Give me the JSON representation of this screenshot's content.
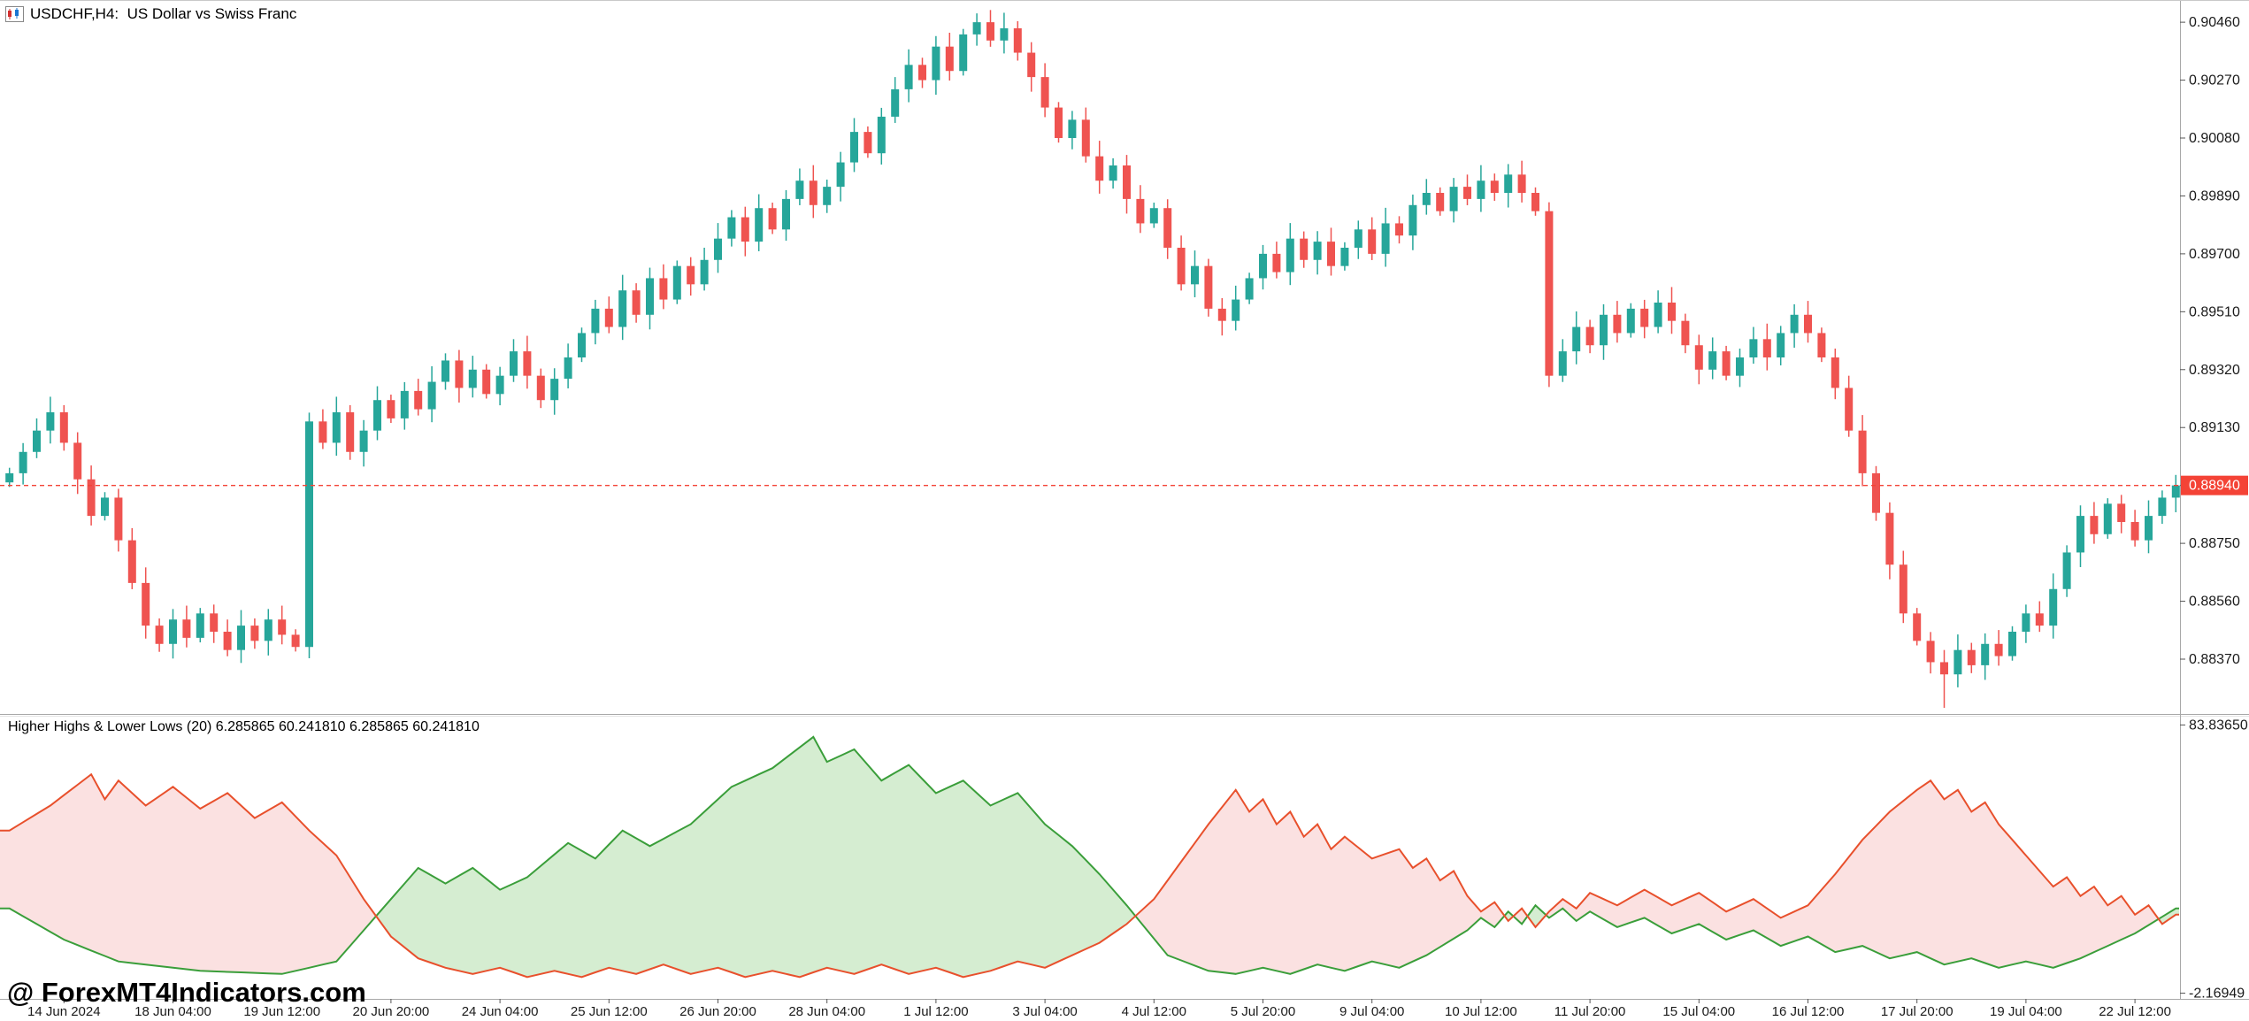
{
  "window": {
    "title": "USDCHF,H4:  US Dollar vs Swiss Franc"
  },
  "watermark": "@ ForexMT4Indicators.com",
  "indicator_label": "Higher Highs & Lower Lows (20) 6.285865 60.241810 6.285865 60.241810",
  "colors": {
    "candle_up": "#26a69a",
    "candle_down": "#ef5350",
    "bid_line": "#f44336",
    "bid_label_text": "#ffffff",
    "indicator_green": "#3a9e3a",
    "indicator_red": "#e8502c",
    "indicator_green_fill": "rgba(105,190,90,0.28)",
    "indicator_red_fill": "rgba(235,90,90,0.18)",
    "axis_text": "#1a1a1a",
    "separator": "#a8a8a8",
    "icon_red": "#d32f2f",
    "icon_blue": "#1976d2"
  },
  "chart_data": {
    "type": "candlestick",
    "title": "USDCHF,H4: US Dollar vs Swiss Franc",
    "symbol": "USDCHF",
    "timeframe": "H4",
    "bid": {
      "price": 0.8894,
      "label": "0.88940"
    },
    "price_axis": {
      "ticks": [
        "0.90460",
        "0.90270",
        "0.90080",
        "0.89890",
        "0.89700",
        "0.89510",
        "0.89320",
        "0.89130",
        "0.88940",
        "0.88750",
        "0.88560",
        "0.88370"
      ],
      "top": 0.9053,
      "bottom": 0.8819
    },
    "time_axis": {
      "labels": [
        "14 Jun 2024",
        "18 Jun 04:00",
        "19 Jun 12:00",
        "20 Jun 20:00",
        "24 Jun 04:00",
        "25 Jun 12:00",
        "26 Jun 20:00",
        "28 Jun 04:00",
        "1 Jul 12:00",
        "3 Jul 04:00",
        "4 Jul 12:00",
        "5 Jul 20:00",
        "9 Jul 04:00",
        "10 Jul 12:00",
        "11 Jul 20:00",
        "15 Jul 04:00",
        "16 Jul 12:00",
        "17 Jul 20:00",
        "19 Jul 04:00",
        "22 Jul 12:00"
      ],
      "first_label_candle_index": 4,
      "candles_per_label": 8
    },
    "candles": {
      "first_open": 0.8895,
      "closes": [
        0.8898,
        0.8905,
        0.8912,
        0.8918,
        0.8908,
        0.8896,
        0.8884,
        0.889,
        0.8876,
        0.8862,
        0.8848,
        0.8842,
        0.885,
        0.8844,
        0.8852,
        0.8846,
        0.884,
        0.8848,
        0.8843,
        0.885,
        0.8845,
        0.8841,
        0.8915,
        0.8908,
        0.8918,
        0.8905,
        0.8912,
        0.8922,
        0.8916,
        0.8925,
        0.8919,
        0.8928,
        0.8935,
        0.8926,
        0.8932,
        0.8924,
        0.893,
        0.8938,
        0.893,
        0.8922,
        0.8929,
        0.8936,
        0.8944,
        0.8952,
        0.8946,
        0.8958,
        0.895,
        0.8962,
        0.8955,
        0.8966,
        0.896,
        0.8968,
        0.8975,
        0.8982,
        0.8974,
        0.8985,
        0.8978,
        0.8988,
        0.8994,
        0.8986,
        0.8992,
        0.9,
        0.901,
        0.9003,
        0.9015,
        0.9024,
        0.9032,
        0.9027,
        0.9038,
        0.903,
        0.9042,
        0.9046,
        0.904,
        0.9044,
        0.9036,
        0.9028,
        0.9018,
        0.9008,
        0.9014,
        0.9002,
        0.8994,
        0.8999,
        0.8988,
        0.898,
        0.8985,
        0.8972,
        0.896,
        0.8966,
        0.8952,
        0.8948,
        0.8955,
        0.8962,
        0.897,
        0.8964,
        0.8975,
        0.8968,
        0.8974,
        0.8966,
        0.8972,
        0.8978,
        0.897,
        0.898,
        0.8976,
        0.8986,
        0.899,
        0.8984,
        0.8992,
        0.8988,
        0.8994,
        0.899,
        0.8996,
        0.899,
        0.8984,
        0.893,
        0.8938,
        0.8946,
        0.894,
        0.895,
        0.8944,
        0.8952,
        0.8946,
        0.8954,
        0.8948,
        0.894,
        0.8932,
        0.8938,
        0.893,
        0.8936,
        0.8942,
        0.8936,
        0.8944,
        0.895,
        0.8944,
        0.8936,
        0.8926,
        0.8912,
        0.8898,
        0.8885,
        0.8868,
        0.8852,
        0.8843,
        0.8836,
        0.8832,
        0.884,
        0.8835,
        0.8842,
        0.8838,
        0.8846,
        0.8852,
        0.8848,
        0.886,
        0.8872,
        0.8884,
        0.8878,
        0.8888,
        0.8882,
        0.8876,
        0.8884,
        0.889,
        0.8894
      ],
      "long_lower_wick": {
        "index": 142,
        "low": 0.8821
      }
    },
    "indicator": {
      "name": "Higher Highs & Lower Lows",
      "period": 20,
      "values_text": "6.285865 60.241810 6.285865 60.241810",
      "axis": {
        "max_label": "83.83650",
        "min_label": "-2.16949",
        "scale_top": 86.5,
        "scale_bottom": -4
      },
      "green_line_points": [
        [
          0,
          25
        ],
        [
          4,
          15
        ],
        [
          8,
          8
        ],
        [
          14,
          5
        ],
        [
          20,
          4
        ],
        [
          24,
          8
        ],
        [
          26,
          18
        ],
        [
          30,
          38
        ],
        [
          32,
          33
        ],
        [
          34,
          38
        ],
        [
          36,
          31
        ],
        [
          38,
          35
        ],
        [
          41,
          46
        ],
        [
          43,
          41
        ],
        [
          45,
          50
        ],
        [
          47,
          45
        ],
        [
          50,
          52
        ],
        [
          53,
          64
        ],
        [
          56,
          70
        ],
        [
          59,
          80
        ],
        [
          60,
          72
        ],
        [
          62,
          76
        ],
        [
          64,
          66
        ],
        [
          66,
          71
        ],
        [
          68,
          62
        ],
        [
          70,
          66
        ],
        [
          72,
          58
        ],
        [
          74,
          62
        ],
        [
          76,
          52
        ],
        [
          78,
          45
        ],
        [
          80,
          36
        ],
        [
          82,
          26
        ],
        [
          85,
          10
        ],
        [
          88,
          5
        ],
        [
          90,
          4
        ],
        [
          92,
          6
        ],
        [
          94,
          4
        ],
        [
          96,
          7
        ],
        [
          98,
          5
        ],
        [
          100,
          8
        ],
        [
          102,
          6
        ],
        [
          104,
          10
        ],
        [
          107,
          18
        ],
        [
          108,
          22
        ],
        [
          109,
          19
        ],
        [
          110,
          24
        ],
        [
          111,
          20
        ],
        [
          112,
          26
        ],
        [
          113,
          22
        ],
        [
          114,
          25
        ],
        [
          115,
          21
        ],
        [
          116,
          24
        ],
        [
          118,
          19
        ],
        [
          120,
          22
        ],
        [
          122,
          17
        ],
        [
          124,
          20
        ],
        [
          126,
          15
        ],
        [
          128,
          18
        ],
        [
          130,
          13
        ],
        [
          132,
          16
        ],
        [
          134,
          11
        ],
        [
          136,
          13
        ],
        [
          138,
          9
        ],
        [
          140,
          11
        ],
        [
          142,
          7
        ],
        [
          144,
          9
        ],
        [
          146,
          6
        ],
        [
          148,
          8
        ],
        [
          150,
          6
        ],
        [
          152,
          9
        ],
        [
          154,
          13
        ],
        [
          156,
          17
        ],
        [
          159,
          25
        ]
      ],
      "red_line_points": [
        [
          0,
          50
        ],
        [
          3,
          58
        ],
        [
          6,
          68
        ],
        [
          7,
          60
        ],
        [
          8,
          66
        ],
        [
          10,
          58
        ],
        [
          12,
          64
        ],
        [
          14,
          57
        ],
        [
          16,
          62
        ],
        [
          18,
          54
        ],
        [
          20,
          59
        ],
        [
          22,
          50
        ],
        [
          24,
          42
        ],
        [
          26,
          28
        ],
        [
          28,
          16
        ],
        [
          30,
          9
        ],
        [
          32,
          6
        ],
        [
          34,
          4
        ],
        [
          36,
          6
        ],
        [
          38,
          3
        ],
        [
          40,
          5
        ],
        [
          42,
          3
        ],
        [
          44,
          6
        ],
        [
          46,
          4
        ],
        [
          48,
          7
        ],
        [
          50,
          4
        ],
        [
          52,
          6
        ],
        [
          54,
          3
        ],
        [
          56,
          5
        ],
        [
          58,
          3
        ],
        [
          60,
          6
        ],
        [
          62,
          4
        ],
        [
          64,
          7
        ],
        [
          66,
          4
        ],
        [
          68,
          6
        ],
        [
          70,
          3
        ],
        [
          72,
          5
        ],
        [
          74,
          8
        ],
        [
          76,
          6
        ],
        [
          78,
          10
        ],
        [
          80,
          14
        ],
        [
          82,
          20
        ],
        [
          84,
          28
        ],
        [
          86,
          40
        ],
        [
          88,
          52
        ],
        [
          90,
          63
        ],
        [
          91,
          56
        ],
        [
          92,
          60
        ],
        [
          93,
          52
        ],
        [
          94,
          56
        ],
        [
          95,
          48
        ],
        [
          96,
          52
        ],
        [
          97,
          44
        ],
        [
          98,
          48
        ],
        [
          100,
          41
        ],
        [
          102,
          44
        ],
        [
          103,
          38
        ],
        [
          104,
          41
        ],
        [
          105,
          34
        ],
        [
          106,
          37
        ],
        [
          107,
          29
        ],
        [
          108,
          24
        ],
        [
          109,
          27
        ],
        [
          110,
          21
        ],
        [
          111,
          25
        ],
        [
          112,
          19
        ],
        [
          113,
          24
        ],
        [
          114,
          28
        ],
        [
          115,
          25
        ],
        [
          116,
          30
        ],
        [
          118,
          26
        ],
        [
          120,
          31
        ],
        [
          122,
          26
        ],
        [
          124,
          30
        ],
        [
          126,
          24
        ],
        [
          128,
          28
        ],
        [
          130,
          22
        ],
        [
          132,
          26
        ],
        [
          134,
          36
        ],
        [
          136,
          47
        ],
        [
          138,
          56
        ],
        [
          140,
          63
        ],
        [
          141,
          66
        ],
        [
          142,
          60
        ],
        [
          143,
          63
        ],
        [
          144,
          56
        ],
        [
          145,
          59
        ],
        [
          146,
          52
        ],
        [
          147,
          47
        ],
        [
          148,
          42
        ],
        [
          149,
          37
        ],
        [
          150,
          32
        ],
        [
          151,
          35
        ],
        [
          152,
          29
        ],
        [
          153,
          32
        ],
        [
          154,
          26
        ],
        [
          155,
          29
        ],
        [
          156,
          23
        ],
        [
          157,
          26
        ],
        [
          158,
          20
        ],
        [
          159,
          23
        ]
      ]
    }
  }
}
